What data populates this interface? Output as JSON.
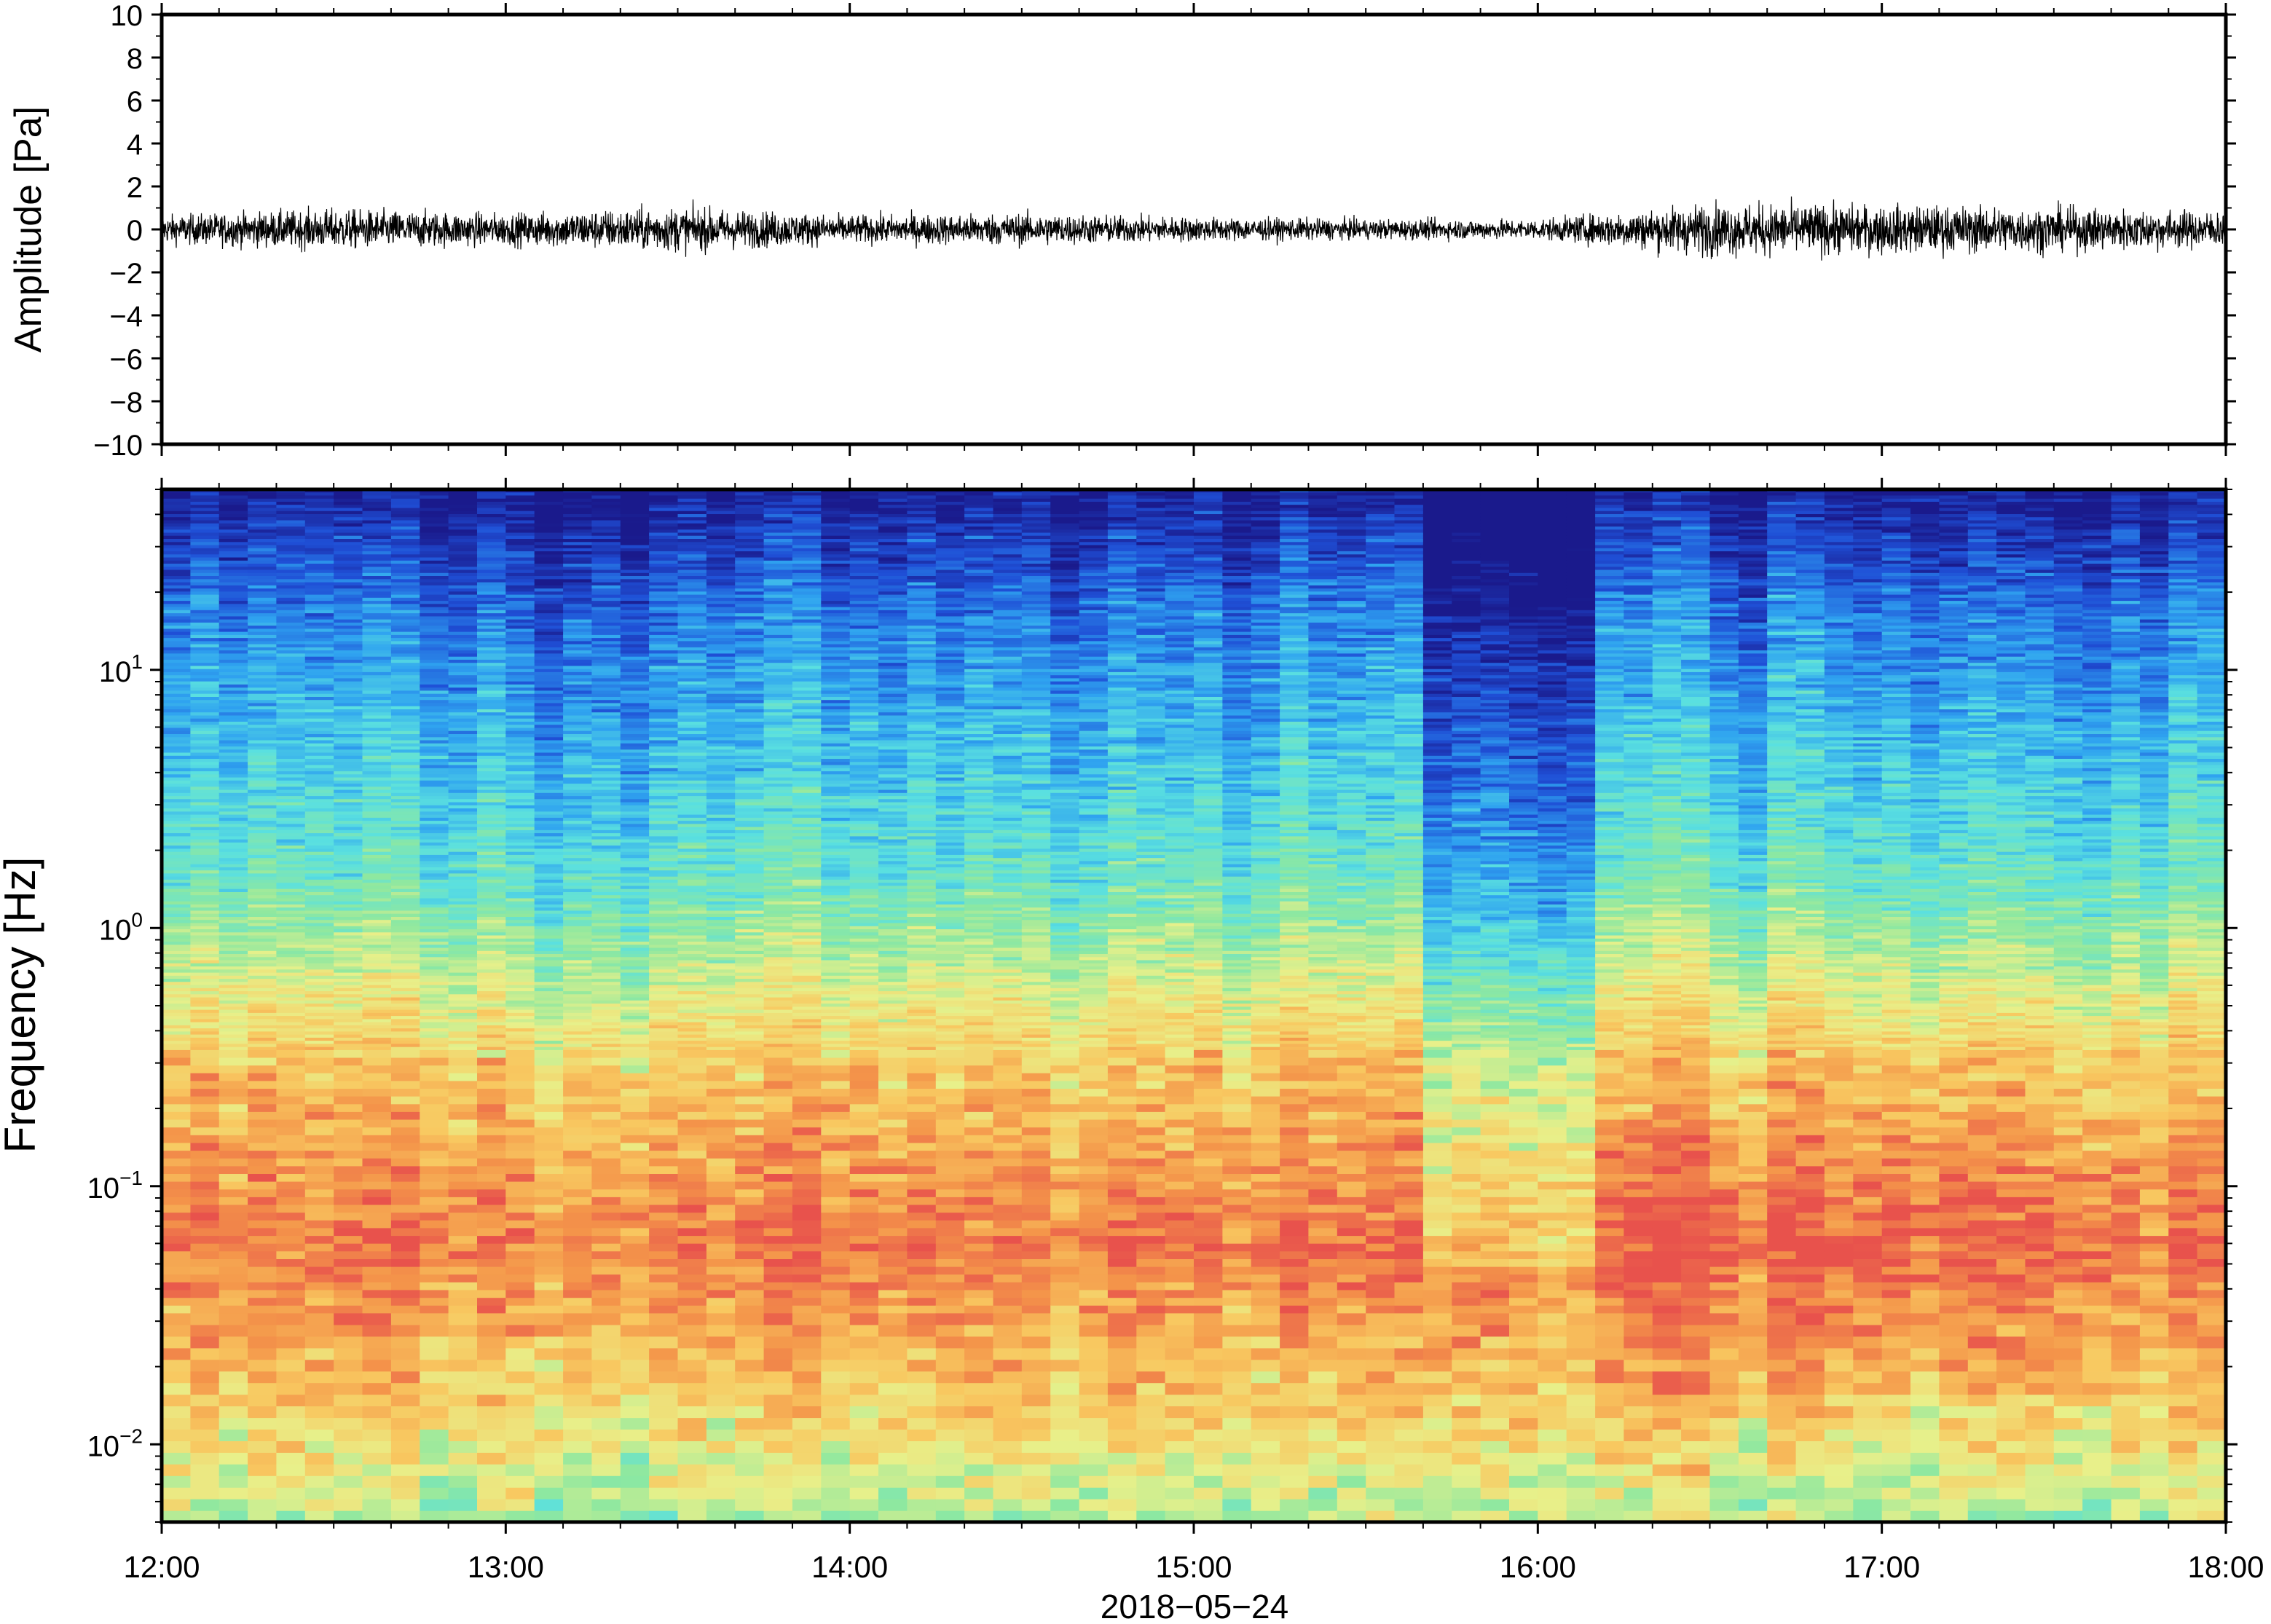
{
  "chart_data": [
    {
      "type": "line",
      "panel": "waveform",
      "ylabel": "Amplitude [Pa]",
      "ylim": [
        -10,
        10
      ],
      "yticks": [
        -10,
        -8,
        -6,
        -4,
        -2,
        0,
        2,
        4,
        6,
        8,
        10
      ],
      "ytick_labels": [
        "−10",
        "−8",
        "−6",
        "−4",
        "−2",
        "0",
        "2",
        "4",
        "6",
        "8",
        "10"
      ],
      "x_range": [
        "12:00",
        "18:00"
      ],
      "series": [
        {
          "x": [
            "12:00",
            "12:30",
            "13:00",
            "13:30",
            "14:00",
            "14:30",
            "15:00",
            "15:30",
            "16:00",
            "16:30",
            "17:00",
            "17:30",
            "18:00"
          ],
          "envelope": [
            0.7,
            1.0,
            0.8,
            1.1,
            0.7,
            0.8,
            0.6,
            0.5,
            0.5,
            1.3,
            1.2,
            1.1,
            0.9
          ]
        }
      ]
    },
    {
      "type": "heatmap",
      "panel": "spectrogram",
      "ylabel": "Frequency [Hz]",
      "yscale": "log",
      "ylim": [
        0.005,
        50
      ],
      "yticks": [
        0.01,
        0.1,
        1,
        10
      ],
      "ytick_labels": [
        {
          "base": "10",
          "exp": "−2"
        },
        {
          "base": "10",
          "exp": "−1"
        },
        {
          "base": "10",
          "exp": "0"
        },
        {
          "base": "10",
          "exp": "1"
        }
      ],
      "colormap": [
        "#1a1a8c",
        "#1f4fd6",
        "#2fa3f0",
        "#5ae0e0",
        "#8ee8a0",
        "#e8f08a",
        "#f8c860",
        "#f4954a",
        "#e8524c"
      ],
      "x_range": [
        "12:00",
        "18:00"
      ],
      "quiet_interval": [
        "15:40",
        "16:12"
      ]
    }
  ],
  "x_axis": {
    "tick_labels": [
      "12:00",
      "13:00",
      "14:00",
      "15:00",
      "16:00",
      "17:00",
      "18:00"
    ],
    "date_label": "2018−05−24"
  }
}
